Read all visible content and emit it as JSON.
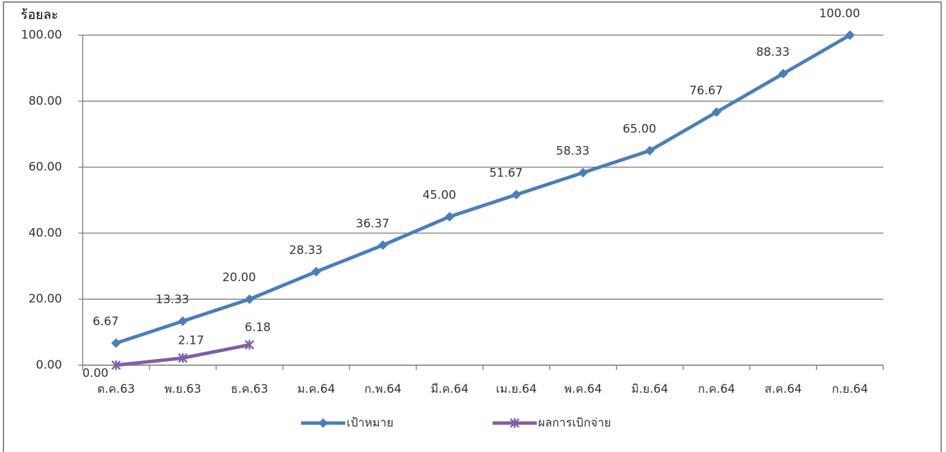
{
  "chart_data": {
    "type": "line",
    "y_label": "ร้อยละ",
    "categories": [
      "ต.ค.63",
      "พ.ย.63",
      "ธ.ค.63",
      "ม.ค.64",
      "ก.พ.64",
      "มี.ค.64",
      "เม.ย.64",
      "พ.ค.64",
      "มิ.ย.64",
      "ก.ค.64",
      "ส.ค.64",
      "ก.ย.64"
    ],
    "series": [
      {
        "name": "เป้าหมาย",
        "color": "#4a7ebb",
        "marker": "diamond",
        "values": [
          6.67,
          13.33,
          20,
          28.33,
          36.37,
          45,
          51.67,
          58.33,
          65,
          76.67,
          88.33,
          100
        ],
        "value_labels": [
          "6.67",
          "13.33",
          "20.00",
          "28.33",
          "36.37",
          "45.00",
          "51.67",
          "58.33",
          "65.00",
          "76.67",
          "88.33",
          "100.00"
        ]
      },
      {
        "name": "ผลการเบิกจ่าย",
        "color": "#7f5fa6",
        "marker": "star",
        "values": [
          0,
          2.17,
          6.18,
          null,
          null,
          null,
          null,
          null,
          null,
          null,
          null,
          null
        ],
        "value_labels": [
          "0.00",
          "2.17",
          "6.18",
          null,
          null,
          null,
          null,
          null,
          null,
          null,
          null,
          null
        ]
      }
    ],
    "ylim": [
      0,
      100
    ],
    "yticks": [
      {
        "value": 0,
        "label": "0.00"
      },
      {
        "value": 20,
        "label": "20.00"
      },
      {
        "value": 40,
        "label": "40.00"
      },
      {
        "value": 60,
        "label": "60.00"
      },
      {
        "value": 80,
        "label": "80.00"
      },
      {
        "value": 100,
        "label": "100.00"
      }
    ],
    "grid": true,
    "legend": "bottom"
  }
}
